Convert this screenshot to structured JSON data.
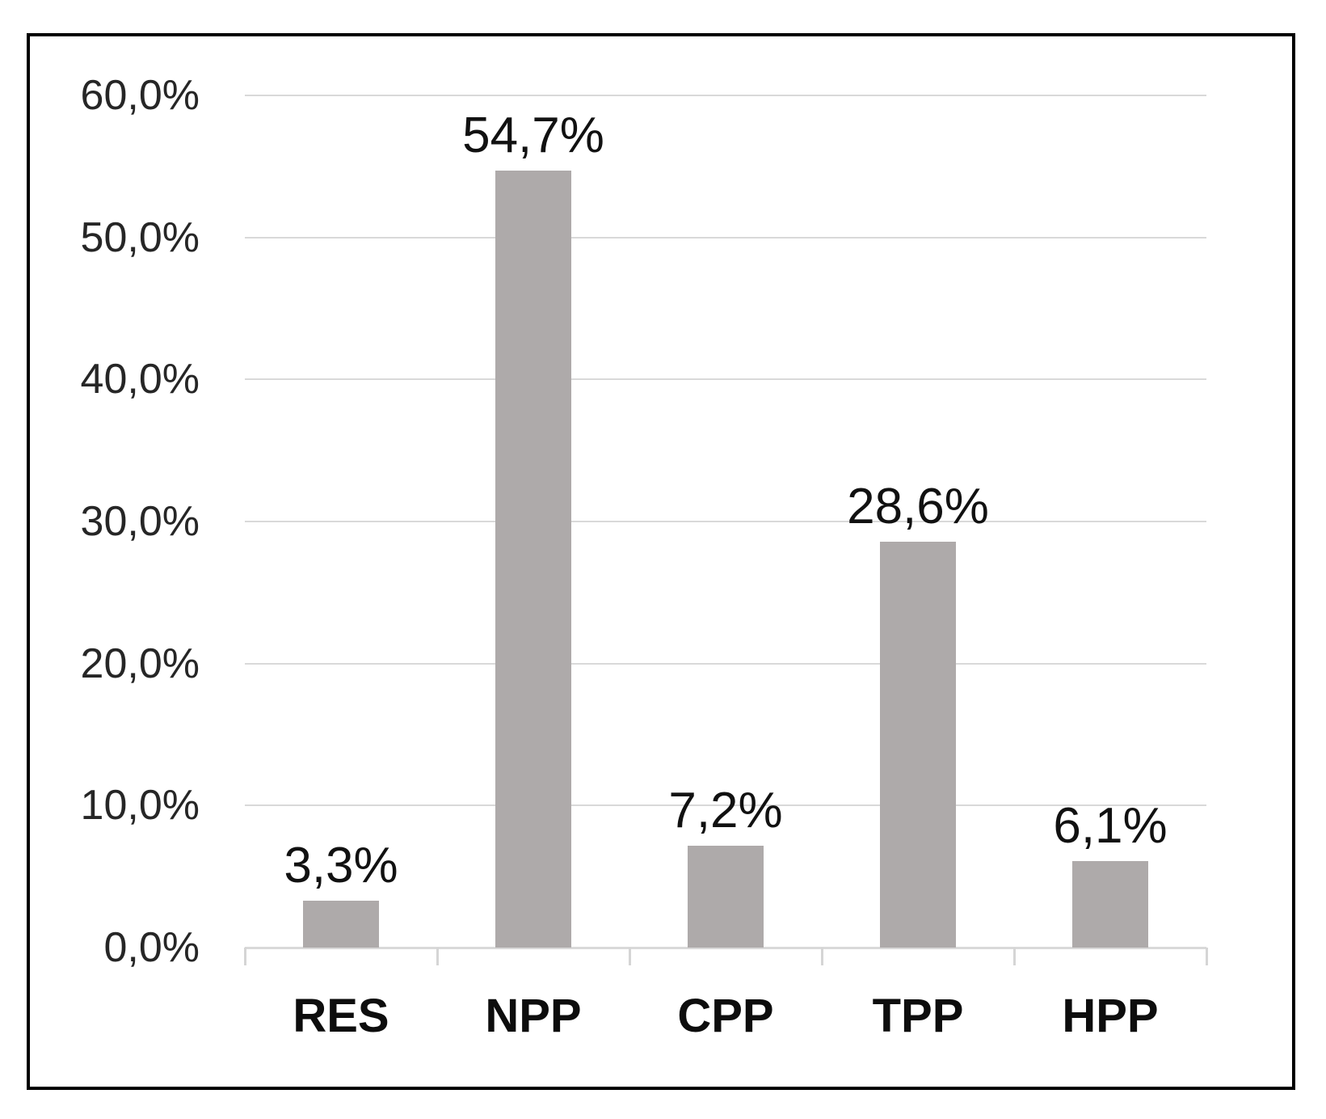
{
  "chart_data": {
    "type": "bar",
    "title": "",
    "xlabel": "",
    "ylabel": "",
    "categories": [
      "RES",
      "NPP",
      "CPP",
      "TPP",
      "HPP"
    ],
    "values": [
      3.3,
      54.7,
      7.2,
      28.6,
      6.1
    ],
    "value_labels": [
      "3,3%",
      "54,7%",
      "7,2%",
      "28,6%",
      "6,1%"
    ],
    "y_axis": {
      "min": 0,
      "max": 60,
      "tick_values": [
        0,
        10,
        20,
        30,
        40,
        50,
        60
      ],
      "tick_labels": [
        "0,0%",
        "10,0%",
        "20,0%",
        "30,0%",
        "40,0%",
        "50,0%",
        "60,0%"
      ]
    },
    "grid": true,
    "legend": false,
    "colors": {
      "bar_fill": "#AEAAAA",
      "gridline": "#D9D9D9",
      "axis_line": "#D5D5D5",
      "y_tick_label": "#262626",
      "value_label": "#111111",
      "category_label": "#0D0D0D",
      "frame_border": "#000000",
      "background": "#FFFFFF"
    }
  }
}
